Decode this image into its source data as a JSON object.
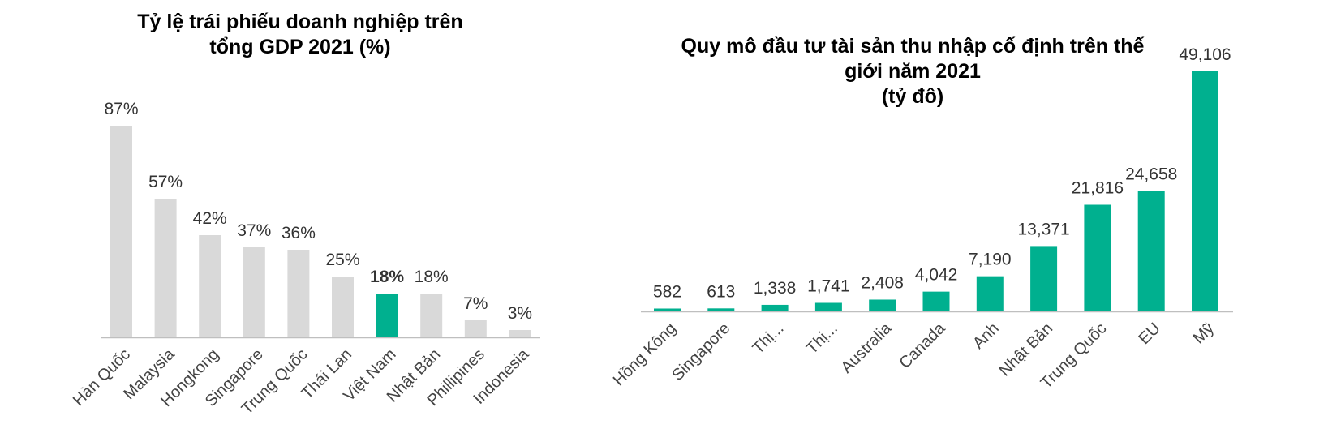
{
  "chart_data": [
    {
      "type": "bar",
      "title_lines": [
        "Tỷ lệ trái phiếu doanh nghiệp trên",
        "tổng GDP 2021 (%)"
      ],
      "categories": [
        "Hàn Quốc",
        "Malaysia",
        "Hongkong",
        "Singapore",
        "Trung Quốc",
        "Thái Lan",
        "Việt Nam",
        "Nhật Bản",
        "Phillipines",
        "Indonesia"
      ],
      "values": [
        87,
        57,
        42,
        37,
        36,
        25,
        18,
        18,
        7,
        3
      ],
      "value_labels": [
        "87%",
        "57%",
        "42%",
        "37%",
        "36%",
        "25%",
        "18%",
        "18%",
        "7%",
        "3%"
      ],
      "highlight_index": 6,
      "colors": {
        "default": "#d9d9d9",
        "highlight": "#00b08f",
        "highlight_label": "#44546a",
        "axis": "#bfbfbf"
      },
      "ylim": [
        0,
        87
      ]
    },
    {
      "type": "bar",
      "title_lines": [
        "Quy mô đầu tư tài sản thu nhập cố định trên thế",
        "giới năm 2021",
        "(tỷ đô)"
      ],
      "categories": [
        "Hồng Kông",
        "Singapore",
        "Thị...",
        "Thị...",
        "Australia",
        "Canada",
        "Anh",
        "Nhật Bản",
        "Trung Quốc",
        "EU",
        "Mỹ"
      ],
      "values": [
        582,
        613,
        1338,
        1741,
        2408,
        4042,
        7190,
        13371,
        21816,
        24658,
        49106
      ],
      "value_labels": [
        "582",
        "613",
        "1,338",
        "1,741",
        "2,408",
        "4,042",
        "7,190",
        "13,371",
        "21,816",
        "24,658",
        "49,106"
      ],
      "colors": {
        "bar": "#00b08f",
        "axis": "#bfbfbf"
      },
      "ylim": [
        0,
        49106
      ]
    }
  ]
}
